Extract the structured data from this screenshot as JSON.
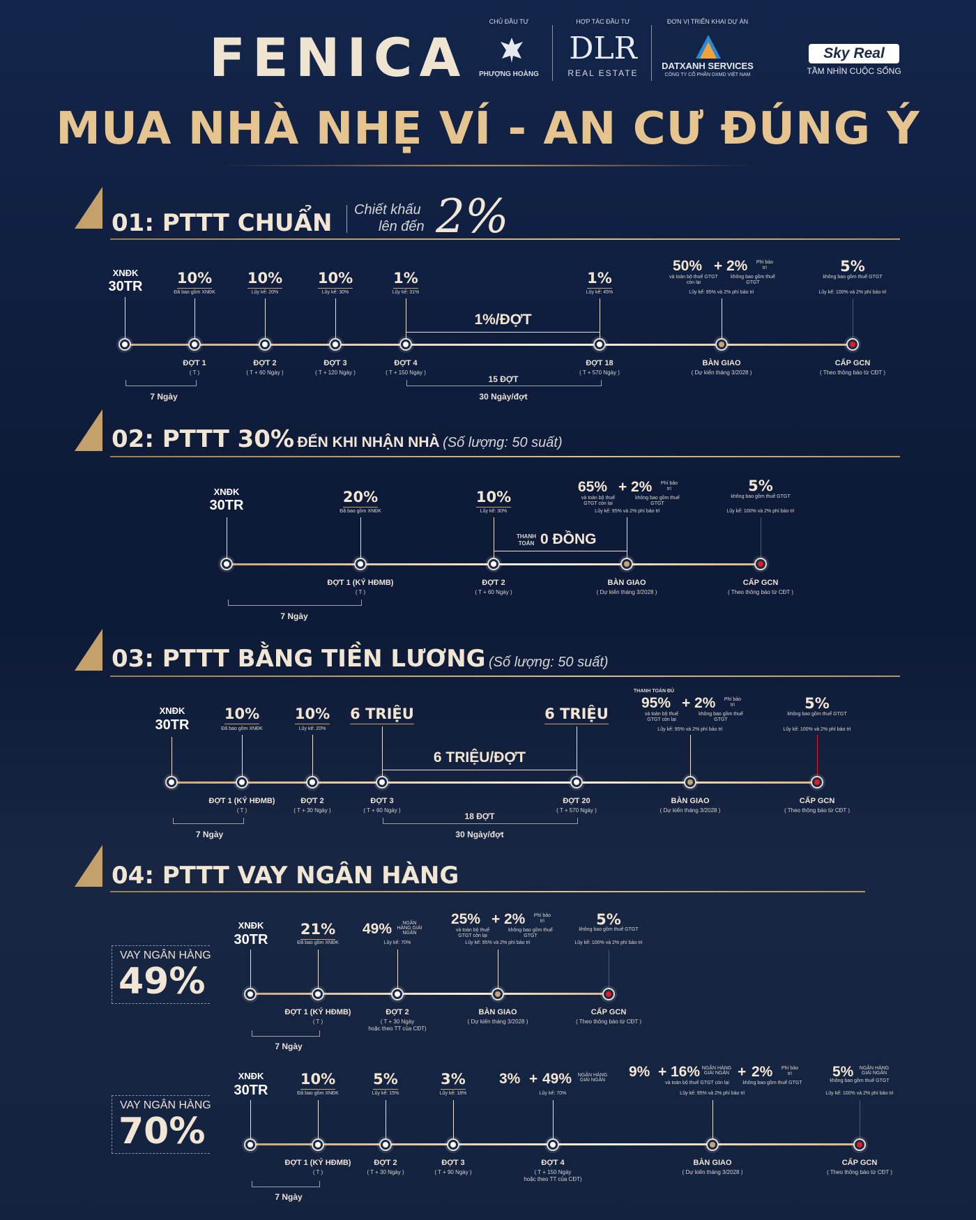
{
  "brand": "FENICA",
  "partners": {
    "chu_dau_tu_label": "CHỦ ĐẦU TƯ",
    "phuong_hoang": "PHƯỢNG HOÀNG",
    "hop_tac_label": "HỢP TÁC ĐẦU TƯ",
    "dlr": "DLR",
    "dlr_sub": "REAL ESTATE",
    "trien_khai_label": "ĐƠN VỊ TRIỂN KHAI DỰ ÁN",
    "datxanh": "DATXANH SERVICES",
    "datxanh_sub": "CÔNG TY CỔ PHẦN DXMD VIỆT NAM",
    "skyreal": "Sky Real",
    "skyreal_sub": "TẦM NHÌN CUỘC SỐNG"
  },
  "headline": "MUA NHÀ NHẸ VÍ - AN CƯ ĐÚNG Ý",
  "s1": {
    "title": "01: PTTT CHUẨN",
    "disc1": "Chiết khấu",
    "disc2": "lên đến",
    "disc_pct": "2%",
    "xndk": "XNĐK",
    "xndk_val": "30TR",
    "p1": "10%",
    "p1s": "Đã bao gồm XNĐK",
    "p2": "10%",
    "p2s": "Lũy kế: 20%",
    "p3": "10%",
    "p3s": "Lũy kế: 30%",
    "p4": "1%",
    "p4s": "Lũy kế: 31%",
    "p18": "1%",
    "p18s": "Lũy kế: 45%",
    "mid": "1%/ĐỢT",
    "bg1": "50%",
    "bg1s": "và toàn bộ thuế GTGT còn lại",
    "bgplus": "+",
    "bg2": "2%",
    "bg2a": "Phí bảo trì",
    "bg2s": "không bao gồm thuế GTGT",
    "bgcum": "Lũy kế: 95% và 2% phí bảo trì",
    "gcn": "5%",
    "gcns": "không bao gồm thuế GTGT",
    "gcncum": "Lũy kế: 100% và 2% phí bảo trì",
    "d1": "ĐỢT 1",
    "d1s": "( T )",
    "d2": "ĐỢT 2",
    "d2s": "( T + 60 Ngày )",
    "d3": "ĐỢT 3",
    "d3s": "( T + 120 Ngày )",
    "d4": "ĐỢT 4",
    "d4s": "( T + 150 Ngày )",
    "d18": "ĐỢT 18",
    "d18s": "( T + 570 Ngày )",
    "bgl": "BÀN GIAO",
    "bgls": "( Dự kiến tháng 3/2028 )",
    "gcnl": "CẤP GCN",
    "gcnls": "( Theo thông báo từ CĐT )",
    "n7": "7 Ngày",
    "n15": "15 ĐỢT",
    "n30": "30 Ngày/đợt"
  },
  "s2": {
    "title_a": "02: PTTT 30%",
    "title_b": "ĐẾN KHI NHẬN NHÀ",
    "note": "(Số lượng: 50 suất)",
    "xndk": "XNĐK",
    "xndk_val": "30TR",
    "p1": "20%",
    "p1s": "Đã bao gồm XNĐK",
    "p2": "10%",
    "p2s": "Lũy kế: 30%",
    "mid_small": "THANH TOÁN",
    "mid": "0 ĐỒNG",
    "bg1": "65%",
    "bg1s": "và toàn bộ thuế GTGT còn lại",
    "bgplus": "+",
    "bg2": "2%",
    "bg2a": "Phí bảo trì",
    "bg2s": "không bao gồm thuế GTGT",
    "bgcum": "Lũy kế: 95% và 2% phí bảo trì",
    "gcn": "5%",
    "gcns": "không bao gồm thuế GTGT",
    "gcncum": "Lũy kế: 100% và 2% phí bảo trì",
    "d1": "ĐỢT 1 (KÝ HĐMB)",
    "d1s": "( T )",
    "d2": "ĐỢT 2",
    "d2s": "( T + 60 Ngày )",
    "bgl": "BÀN GIAO",
    "bgls": "( Dự kiến tháng 3/2028 )",
    "gcnl": "CẤP GCN",
    "gcnls": "( Theo thông báo từ CĐT )",
    "n7": "7 Ngày"
  },
  "s3": {
    "title": "03: PTTT BẰNG TIỀN LƯƠNG",
    "note": "(Số lượng: 50 suất)",
    "xndk": "XNĐK",
    "xndk_val": "30TR",
    "p1": "10%",
    "p1s": "Đã bao gồm XNĐK",
    "p2": "10%",
    "p2s": "Lũy kế: 20%",
    "p3": "6 TRIỆU",
    "p20": "6 TRIỆU",
    "mid": "6 TRIỆU/ĐỢT",
    "bgtop": "THANH TOÁN ĐỦ",
    "bg1": "95%",
    "bg1s": "và toàn bộ thuế GTGT còn lại",
    "bgplus": "+",
    "bg2": "2%",
    "bg2a": "Phí bảo trì",
    "bg2s": "không bao gồm thuế GTGT",
    "bgcum": "Lũy kế: 95% và 2% phí bảo trì",
    "gcn": "5%",
    "gcns": "không bao gồm thuế GTGT",
    "gcncum": "Lũy kế: 100% và 2% phí bảo trì",
    "d1": "ĐỢT 1 (KÝ HĐMB)",
    "d1s": "( T )",
    "d2": "ĐỢT 2",
    "d2s": "( T + 30 Ngày )",
    "d3": "ĐỢT 3",
    "d3s": "( T + 60 Ngày )",
    "d20": "ĐỢT 20",
    "d20s": "( T + 570 Ngày )",
    "bgl": "BÀN GIAO",
    "bgls": "( Dự kiến tháng 3/2028 )",
    "gcnl": "CẤP GCN",
    "gcnls": "( Theo thông báo từ CĐT )",
    "n7": "7 Ngày",
    "n18": "18 ĐỢT",
    "n30": "30 Ngày/đợt"
  },
  "s4": {
    "title": "04: PTTT VAY NGÂN HÀNG",
    "a": {
      "vay": "VAY NGÂN HÀNG",
      "vay_pct": "49%",
      "xndk": "XNĐK",
      "xndk_val": "30TR",
      "p1": "21%",
      "p1s": "Đã bao gồm XNĐK",
      "p2": "49%",
      "p2a": "NGÂN HÀNG GIẢI NGÂN",
      "p2s": "Lũy kế: 70%",
      "bg1": "25%",
      "bg1s": "và toàn bộ thuế GTGT còn lại",
      "bgplus": "+",
      "bg2": "2%",
      "bg2a": "Phí bảo trì",
      "bg2s": "không bao gồm thuế GTGT",
      "bgcum": "Lũy kế: 95% và 2% phí bảo trì",
      "gcn": "5%",
      "gcns": "không bao gồm thuế GTGT",
      "gcncum": "Lũy kế: 100% và 2% phí bảo trì",
      "d1": "ĐỢT 1 (KÝ HĐMB)",
      "d1s": "( T )",
      "d2": "ĐỢT 2",
      "d2s": "( T + 30 Ngày",
      "d2s2": "hoặc theo TT của CĐT)",
      "bgl": "BÀN GIAO",
      "bgls": "( Dự kiến tháng 3/2028 )",
      "gcnl": "CẤP GCN",
      "gcnls": "( Theo thông báo từ CĐT )",
      "n7": "7 Ngày"
    },
    "b": {
      "vay": "VAY NGÂN HÀNG",
      "vay_pct": "70%",
      "xndk": "XNĐK",
      "xndk_val": "30TR",
      "p1": "10%",
      "p1s": "Đã bao gồm XNĐK",
      "p2": "5%",
      "p2s": "Lũy kế: 15%",
      "p3": "3%",
      "p3s": "Lũy kế: 18%",
      "p4a": "3%",
      "p4plus": "+",
      "p4b": "49%",
      "p4c": "NGÂN HÀNG GIẢI NGÂN",
      "p4s": "Lũy kế: 70%",
      "bga": "9%",
      "bgplus1": "+",
      "bgb": "16%",
      "bgbc": "NGÂN HÀNG GIẢI NGÂN",
      "bgas": "và toàn bộ thuế GTGT còn lại",
      "bgplus2": "+",
      "bgc": "2%",
      "bgca": "Phí bảo trì",
      "bgcs": "không bao gồm thuế GTGT",
      "bgcum": "Lũy kế: 95% và 2% phí bảo trì",
      "gcn": "5%",
      "gcna": "NGÂN HÀNG GIẢI NGÂN",
      "gcns": "không bao gồm thuế GTGT",
      "gcncum": "Lũy kế: 100% và 2% phí bảo trì",
      "d1": "ĐỢT 1 (KÝ HĐMB)",
      "d1s": "( T )",
      "d2": "ĐỢT 2",
      "d2s": "( T + 30 Ngày )",
      "d3": "ĐỢT 3",
      "d3s": "( T + 90 Ngày )",
      "d4": "ĐỢT 4",
      "d4s": "( T + 150 Ngày",
      "d4s2": "hoặc theo TT của CĐT)",
      "bgl": "BÀN GIAO",
      "bgls": "( Dự kiến tháng 3/2028 )",
      "gcnl": "CẤP GCN",
      "gcnls": "( Theo thông báo từ CĐT )",
      "n7": "7 Ngày"
    }
  }
}
